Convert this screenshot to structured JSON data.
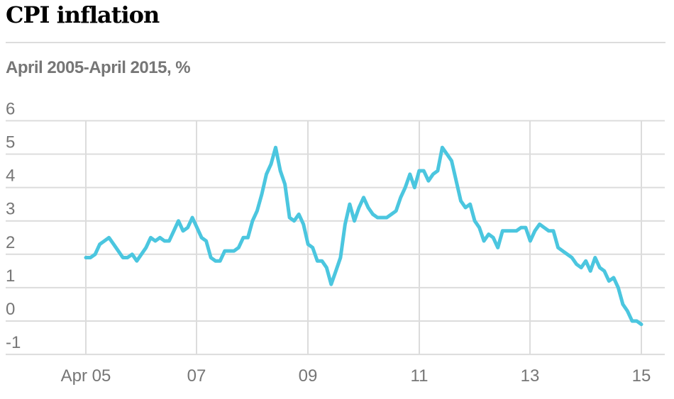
{
  "chart_data": {
    "type": "line",
    "title": "CPI inflation",
    "subtitle": "April 2005-April 2015, %",
    "xlabel": "",
    "ylabel": "",
    "ylim": [
      -1,
      6
    ],
    "yticks": [
      "6",
      "5",
      "4",
      "3",
      "2",
      "1",
      "0",
      "-1"
    ],
    "ytick_values": [
      6,
      5,
      4,
      3,
      2,
      1,
      0,
      -1
    ],
    "xticks": [
      "Apr 05",
      "07",
      "09",
      "11",
      "13",
      "15"
    ],
    "xtick_month_index": [
      0,
      21,
      45,
      69,
      93,
      117
    ],
    "grid": true,
    "line_color": "#4bc6df",
    "series": [
      {
        "name": "CPI",
        "start": "Apr 2005",
        "frequency": "monthly",
        "values": [
          1.9,
          1.9,
          2.0,
          2.3,
          2.4,
          2.5,
          2.3,
          2.1,
          1.9,
          1.9,
          2.0,
          1.8,
          2.0,
          2.2,
          2.5,
          2.4,
          2.5,
          2.4,
          2.4,
          2.7,
          3.0,
          2.7,
          2.8,
          3.1,
          2.8,
          2.5,
          2.4,
          1.9,
          1.8,
          1.8,
          2.1,
          2.1,
          2.1,
          2.2,
          2.5,
          2.5,
          3.0,
          3.3,
          3.8,
          4.4,
          4.7,
          5.2,
          4.5,
          4.1,
          3.1,
          3.0,
          3.2,
          2.9,
          2.3,
          2.2,
          1.8,
          1.8,
          1.6,
          1.1,
          1.5,
          1.9,
          2.9,
          3.5,
          3.0,
          3.4,
          3.7,
          3.4,
          3.2,
          3.1,
          3.1,
          3.1,
          3.2,
          3.3,
          3.7,
          4.0,
          4.4,
          4.0,
          4.5,
          4.5,
          4.2,
          4.4,
          4.5,
          5.2,
          5.0,
          4.8,
          4.2,
          3.6,
          3.4,
          3.5,
          3.0,
          2.8,
          2.4,
          2.6,
          2.5,
          2.2,
          2.7,
          2.7,
          2.7,
          2.7,
          2.8,
          2.8,
          2.4,
          2.7,
          2.9,
          2.8,
          2.7,
          2.7,
          2.2,
          2.1,
          2.0,
          1.9,
          1.7,
          1.6,
          1.8,
          1.5,
          1.9,
          1.6,
          1.5,
          1.2,
          1.3,
          1.0,
          0.5,
          0.3,
          0.0,
          0.0,
          -0.1
        ]
      }
    ]
  }
}
